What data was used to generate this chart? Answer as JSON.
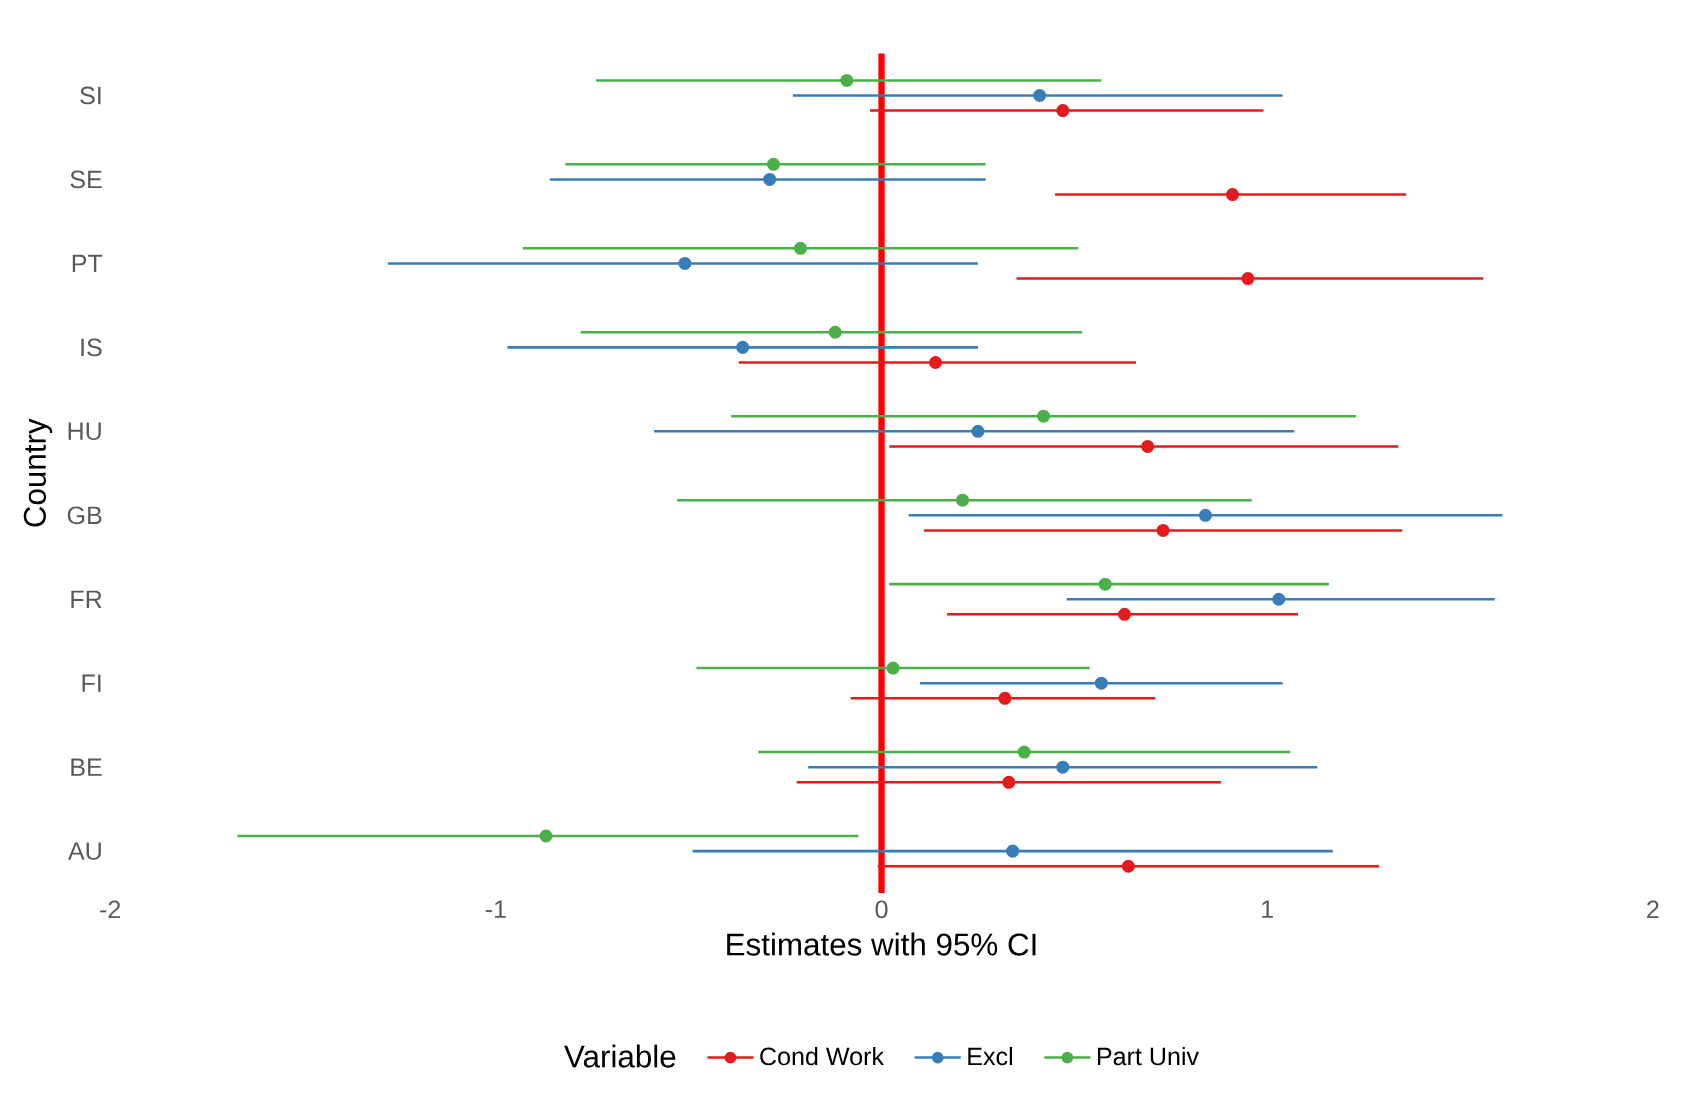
{
  "chart_data": {
    "type": "scatter",
    "orientation": "horizontal",
    "xlabel": "Estimates with 95% CI",
    "ylabel": "Country",
    "legend_title": "Variable",
    "legend": "bottom",
    "marker": "circle",
    "categories": [
      "SI",
      "SE",
      "PT",
      "IS",
      "HU",
      "GB",
      "FR",
      "FI",
      "BE",
      "AU"
    ],
    "xlim": [
      -2,
      2
    ],
    "xticks": [
      -2,
      -1,
      0,
      1,
      2
    ],
    "ref_lines": [
      {
        "axis": "x",
        "value": 0,
        "color": "#ff0000"
      }
    ],
    "series": [
      {
        "name": "Cond Work",
        "color": "#e41a1c",
        "values": [
          0.47,
          0.91,
          0.95,
          0.14,
          0.69,
          0.73,
          0.63,
          0.32,
          0.33,
          0.64
        ],
        "errors": [
          [
            -0.03,
            0.99
          ],
          [
            0.45,
            1.36
          ],
          [
            0.35,
            1.56
          ],
          [
            -0.37,
            0.66
          ],
          [
            0.02,
            1.34
          ],
          [
            0.11,
            1.35
          ],
          [
            0.17,
            1.08
          ],
          [
            -0.08,
            0.71
          ],
          [
            -0.22,
            0.88
          ],
          [
            -0.01,
            1.29
          ]
        ]
      },
      {
        "name": "Excl",
        "color": "#377eb8",
        "values": [
          0.41,
          -0.29,
          -0.51,
          -0.36,
          0.25,
          0.84,
          1.03,
          0.57,
          0.47,
          0.34
        ],
        "errors": [
          [
            -0.23,
            1.04
          ],
          [
            -0.86,
            0.27
          ],
          [
            -1.28,
            0.25
          ],
          [
            -0.97,
            0.25
          ],
          [
            -0.59,
            1.07
          ],
          [
            0.07,
            1.61
          ],
          [
            0.48,
            1.59
          ],
          [
            0.1,
            1.04
          ],
          [
            -0.19,
            1.13
          ],
          [
            -0.49,
            1.17
          ]
        ]
      },
      {
        "name": "Part Univ",
        "color": "#4daf4a",
        "values": [
          -0.09,
          -0.28,
          -0.21,
          -0.12,
          0.42,
          0.21,
          0.58,
          0.03,
          0.37,
          -0.87
        ],
        "errors": [
          [
            -0.74,
            0.57
          ],
          [
            -0.82,
            0.27
          ],
          [
            -0.93,
            0.51
          ],
          [
            -0.78,
            0.52
          ],
          [
            -0.39,
            1.23
          ],
          [
            -0.53,
            0.96
          ],
          [
            0.02,
            1.16
          ],
          [
            -0.48,
            0.54
          ],
          [
            -0.32,
            1.06
          ],
          [
            -1.67,
            -0.06
          ]
        ]
      }
    ]
  }
}
